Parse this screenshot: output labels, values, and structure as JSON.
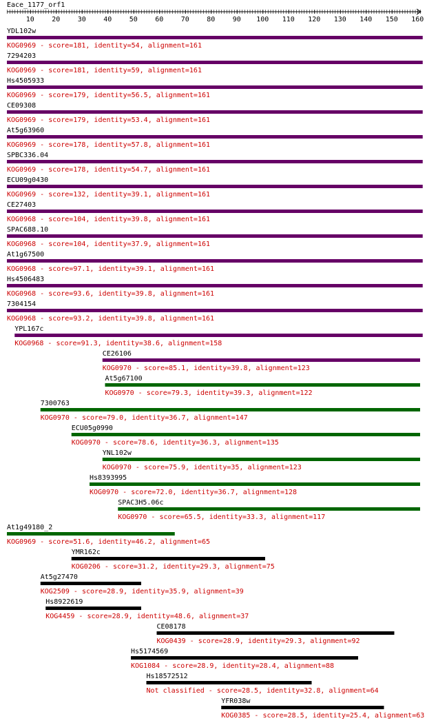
{
  "query": {
    "name": "Eace_1177_orf1",
    "ticks": [
      "10",
      "20",
      "30",
      "40",
      "50",
      "60",
      "70",
      "80",
      "90",
      "100",
      "110",
      "120",
      "130",
      "140",
      "150",
      "160"
    ]
  },
  "colors": {
    "purple": "#660066",
    "green": "#006600",
    "black": "#000000",
    "label_red": "#cc0000",
    "text": "#000000"
  },
  "hits": [
    {
      "name": "YDL102w",
      "start": 1,
      "end": 161,
      "color": "purple",
      "desc": "KOG0969 - score=181, identity=54, alignment=161"
    },
    {
      "name": "7294203",
      "start": 1,
      "end": 161,
      "color": "purple",
      "desc": "KOG0969 - score=181, identity=59, alignment=161"
    },
    {
      "name": "Hs4505933",
      "start": 1,
      "end": 161,
      "color": "purple",
      "desc": "KOG0969 - score=179, identity=56.5, alignment=161"
    },
    {
      "name": "CE09308",
      "start": 1,
      "end": 161,
      "color": "purple",
      "desc": "KOG0969 - score=179, identity=53.4, alignment=161"
    },
    {
      "name": "At5g63960",
      "start": 1,
      "end": 161,
      "color": "purple",
      "desc": "KOG0969 - score=178, identity=57.8, alignment=161"
    },
    {
      "name": "SPBC336.04",
      "start": 1,
      "end": 161,
      "color": "purple",
      "desc": "KOG0969 - score=178, identity=54.7, alignment=161"
    },
    {
      "name": "ECU09g0430",
      "start": 1,
      "end": 161,
      "color": "purple",
      "desc": "KOG0969 - score=132, identity=39.1, alignment=161"
    },
    {
      "name": "CE27403",
      "start": 1,
      "end": 161,
      "color": "purple",
      "desc": "KOG0968 - score=104, identity=39.8, alignment=161"
    },
    {
      "name": "SPAC688.10",
      "start": 1,
      "end": 161,
      "color": "purple",
      "desc": "KOG0968 - score=104, identity=37.9, alignment=161"
    },
    {
      "name": "At1g67500",
      "start": 1,
      "end": 161,
      "color": "purple",
      "desc": "KOG0968 - score=97.1, identity=39.1, alignment=161"
    },
    {
      "name": "Hs4506483",
      "start": 1,
      "end": 161,
      "color": "purple",
      "desc": "KOG0968 - score=93.6, identity=39.8, alignment=161"
    },
    {
      "name": "7304154",
      "start": 1,
      "end": 161,
      "color": "purple",
      "desc": "KOG0968 - score=93.2, identity=39.8, alignment=161"
    },
    {
      "name": "YPL167c",
      "start": 4,
      "end": 161,
      "color": "purple",
      "desc": "KOG0968 - score=91.3, identity=38.6, alignment=158"
    },
    {
      "name": "CE26106",
      "start": 38,
      "end": 160,
      "color": "purple",
      "desc": "KOG0970 - score=85.1, identity=39.8, alignment=123"
    },
    {
      "name": "At5g67100",
      "start": 39,
      "end": 160,
      "color": "green",
      "desc": "KOG0970 - score=79.3, identity=39.3, alignment=122"
    },
    {
      "name": "7300763",
      "start": 14,
      "end": 160,
      "color": "green",
      "desc": "KOG0970 - score=79.0, identity=36.7, alignment=147"
    },
    {
      "name": "ECU05g0990",
      "start": 26,
      "end": 160,
      "color": "green",
      "desc": "KOG0970 - score=78.6, identity=36.3, alignment=135"
    },
    {
      "name": "YNL102w",
      "start": 38,
      "end": 160,
      "color": "green",
      "desc": "KOG0970 - score=75.9, identity=35, alignment=123"
    },
    {
      "name": "Hs8393995",
      "start": 33,
      "end": 160,
      "color": "green",
      "desc": "KOG0970 - score=72.0, identity=36.7, alignment=128"
    },
    {
      "name": "SPAC3H5.06c",
      "start": 44,
      "end": 160,
      "color": "green",
      "desc": "KOG0970 - score=65.5, identity=33.3, alignment=117"
    },
    {
      "name": "At1g49180_2",
      "start": 1,
      "end": 65,
      "color": "green",
      "desc": "KOG0969 - score=51.6, identity=46.2, alignment=65"
    },
    {
      "name": "YMR162c",
      "start": 26,
      "end": 100,
      "color": "black",
      "desc": "KOG0206 - score=31.2, identity=29.3, alignment=75"
    },
    {
      "name": "At5g27470",
      "start": 14,
      "end": 52,
      "color": "black",
      "desc": "KOG2509 - score=28.9, identity=35.9, alignment=39"
    },
    {
      "name": "Hs8922619",
      "start": 16,
      "end": 52,
      "color": "black",
      "desc": "KOG4459 - score=28.9, identity=48.6, alignment=37"
    },
    {
      "name": "CE08178",
      "start": 59,
      "end": 150,
      "color": "black",
      "desc": "KOG0439 - score=28.9, identity=29.3, alignment=92"
    },
    {
      "name": "Hs5174569",
      "start": 49,
      "end": 136,
      "color": "black",
      "desc": "KOG1084 - score=28.9, identity=28.4, alignment=88"
    },
    {
      "name": "Hs18572512",
      "start": 55,
      "end": 118,
      "color": "black",
      "desc": "Not classified - score=28.5, identity=32.8, alignment=64"
    },
    {
      "name": "YFR038w",
      "start": 84,
      "end": 146,
      "color": "black",
      "desc": "KOG0385 - score=28.5, identity=25.4, alignment=63"
    }
  ]
}
